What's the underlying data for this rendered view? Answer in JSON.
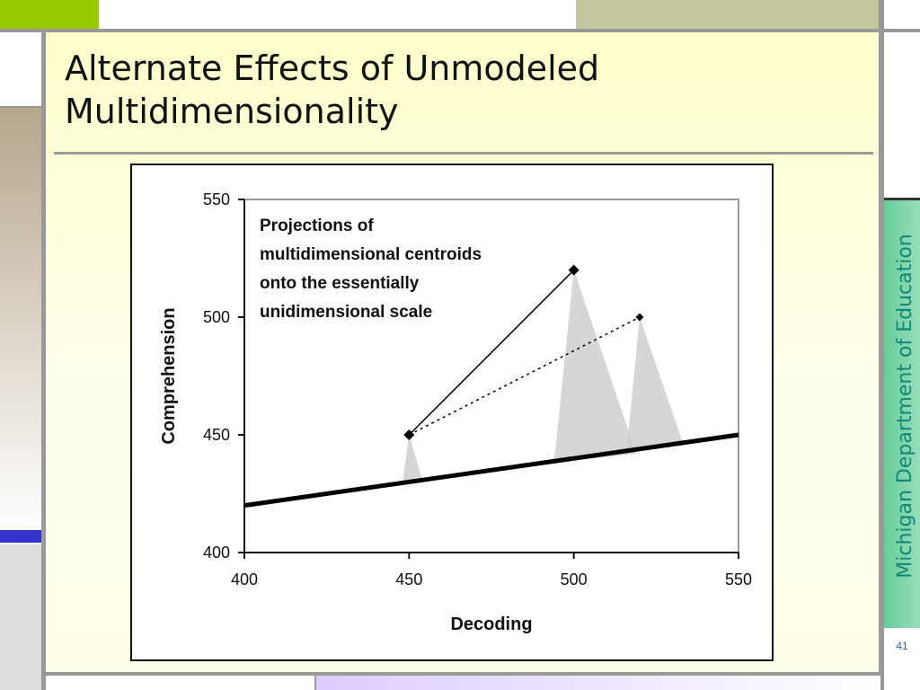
{
  "slide": {
    "title": "Alternate Effects of Unmodeled Multidimensionality",
    "organization": "Michigan Department of Education",
    "slide_number": "41"
  },
  "colors": {
    "accent_green": "#99cc00",
    "olive": "#c6c69c",
    "sidebar_green": "#66cc99",
    "blue_strip": "#3333cc",
    "projection_fill": "#cccccc"
  },
  "chart_data": {
    "type": "scatter",
    "xlabel": "Decoding",
    "ylabel": "Comprehension",
    "xlim": [
      400,
      550
    ],
    "ylim": [
      400,
      550
    ],
    "xticks": [
      "400",
      "450",
      "500",
      "550"
    ],
    "yticks": [
      "400",
      "450",
      "500",
      "550"
    ],
    "annotation": [
      "Projections of",
      "multidimensional centroids",
      "onto the essentially",
      "unidimensional scale"
    ],
    "unidimensional_scale": {
      "from": [
        400,
        420
      ],
      "to": [
        550,
        450
      ]
    },
    "centroids": [
      {
        "x": 450,
        "y": 450
      },
      {
        "x": 500,
        "y": 520
      },
      {
        "x": 520,
        "y": 500
      }
    ],
    "solid_segment": {
      "from": [
        450,
        450
      ],
      "to": [
        500,
        520
      ]
    },
    "dotted_segment": {
      "from": [
        450,
        450
      ],
      "to": [
        520,
        500
      ]
    },
    "projections": [
      {
        "apex": [
          450,
          450
        ],
        "base": [
          [
            448,
            430
          ],
          [
            454,
            431
          ]
        ]
      },
      {
        "apex": [
          500,
          520
        ],
        "base": [
          [
            494,
            438
          ],
          [
            519,
            442
          ]
        ]
      },
      {
        "apex": [
          520,
          500
        ],
        "base": [
          [
            516,
            443
          ],
          [
            533,
            447
          ]
        ]
      }
    ],
    "grid": false,
    "legend": "none"
  }
}
